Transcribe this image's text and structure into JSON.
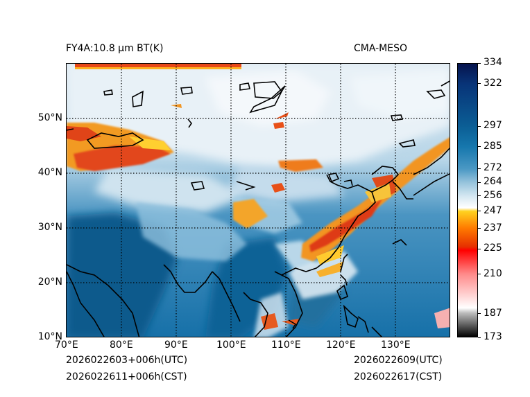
{
  "title_left": "FY4A:10.8 µm BT(K)",
  "title_right": "CMA-MESO",
  "x_ticks": [
    "70°E",
    "80°E",
    "90°E",
    "100°E",
    "110°E",
    "120°E",
    "130°E"
  ],
  "y_ticks": [
    "10°N",
    "20°N",
    "30°N",
    "40°N",
    "50°N"
  ],
  "colorbar": {
    "unit": "K",
    "tick_labels": [
      "334",
      "322",
      "297",
      "285",
      "272",
      "264",
      "256",
      "247",
      "237",
      "225",
      "210",
      "187",
      "173"
    ],
    "stops": [
      {
        "v": 173,
        "c": "#000000"
      },
      {
        "v": 187,
        "c": "#bdbdbd"
      },
      {
        "v": 190,
        "c": "#ffffff"
      },
      {
        "v": 210,
        "c": "#ff8a8a"
      },
      {
        "v": 224,
        "c": "#ff0000"
      },
      {
        "v": 226,
        "c": "#e63000"
      },
      {
        "v": 237,
        "c": "#ff7a00"
      },
      {
        "v": 247,
        "c": "#ffd21f"
      },
      {
        "v": 249,
        "c": "#ffffff"
      },
      {
        "v": 256,
        "c": "#d4e7f1"
      },
      {
        "v": 264,
        "c": "#96c3dc"
      },
      {
        "v": 272,
        "c": "#4a98c4"
      },
      {
        "v": 285,
        "c": "#1677ad"
      },
      {
        "v": 297,
        "c": "#0b5e95"
      },
      {
        "v": 322,
        "c": "#083478"
      },
      {
        "v": 334,
        "c": "#06134d"
      }
    ]
  },
  "footer": {
    "left_utc": "2026022603+006h(UTC)",
    "left_cst": "2026022611+006h(CST)",
    "right_utc": "2026022609(UTC)",
    "right_cst": "2026022617(CST)"
  },
  "colors": {
    "ocean": "#1a6fa6",
    "land_warm": "#0f5f92",
    "cloud_white": "#eef5fa",
    "cloud_mid": "#9ccae2",
    "cold_orange": "#f08a1a",
    "cold_red": "#e23a10",
    "coast": "#000000"
  }
}
